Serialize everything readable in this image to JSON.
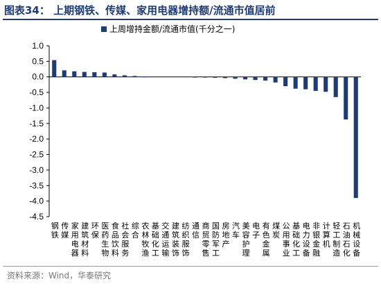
{
  "header": {
    "title": "图表34：  上期钢铁、传媒、家用电器增持额/流通市值居前"
  },
  "footer": {
    "source": "资料来源：Wind，华泰研究"
  },
  "colors": {
    "bar": "#1f3b73",
    "title": "#1f3b73"
  },
  "chart_data": {
    "type": "bar",
    "title": "",
    "xlabel": "",
    "ylabel": "",
    "legend": {
      "position": "top",
      "entries": [
        "上周增持金额/流通市值(千分之一)"
      ]
    },
    "ylim": [
      -4.5,
      1.0
    ],
    "yticks": [
      "1.0",
      "0.5",
      "0.0",
      "-0.5",
      "-1.0",
      "-1.5",
      "-2.0",
      "-2.5",
      "-3.0",
      "-3.5",
      "-4.0",
      "-4.5"
    ],
    "grid": false,
    "categories": [
      "钢铁",
      "传媒",
      "家用电器",
      "建筑材料",
      "环保",
      "医药生物",
      "食品饮料",
      "社会服务",
      "综合",
      "农林牧渔",
      "基础化工",
      "交通运输",
      "建筑装饰",
      "纺织服饰",
      "通信",
      "商贸零售",
      "国防军工",
      "房地产",
      "汽车",
      "美容护理",
      "电子",
      "有色金属",
      "煤炭",
      "公用事业",
      "基础化工",
      "电力设备",
      "非银金融",
      "计算机",
      "轻工制造",
      "石油石化",
      "机械设备"
    ],
    "series": [
      {
        "name": "上周增持金额/流通市值(千分之一)",
        "values": [
          0.54,
          0.21,
          0.18,
          0.16,
          0.15,
          0.14,
          0.08,
          0.05,
          0.03,
          0.01,
          0.0,
          0.0,
          0.0,
          0.0,
          -0.01,
          -0.02,
          -0.03,
          -0.04,
          -0.06,
          -0.08,
          -0.1,
          -0.12,
          -0.18,
          -0.3,
          -0.38,
          -0.4,
          -0.45,
          -0.48,
          -0.65,
          -1.37,
          -3.9
        ]
      }
    ]
  }
}
